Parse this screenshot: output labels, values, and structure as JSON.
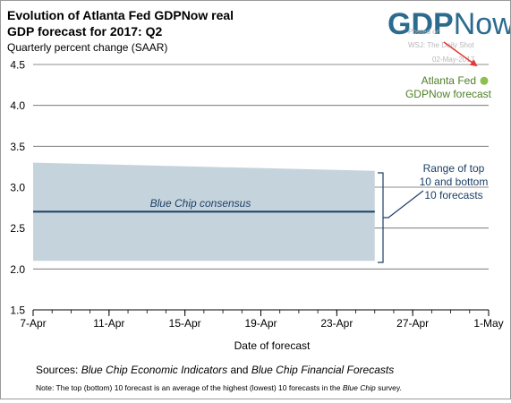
{
  "chart_data": {
    "type": "area",
    "title": "Evolution of Atlanta Fed GDPNow real GDP forecast for 2017: Q2",
    "title_lines": [
      "Evolution of Atlanta Fed GDPNow real",
      "GDP forecast for 2017: Q2"
    ],
    "subtitle": "Quarterly percent change (SAAR)",
    "xlabel": "Date of forecast",
    "ylabel": "",
    "ylim": [
      1.5,
      4.5
    ],
    "yticks": [
      "4.5",
      "4.0",
      "3.5",
      "3.0",
      "2.5",
      "2.0",
      "1.5"
    ],
    "ytick_values": [
      4.5,
      4.0,
      3.5,
      3.0,
      2.5,
      2.0,
      1.5
    ],
    "xlim": [
      "2017-04-07",
      "2017-05-01"
    ],
    "xticks": [
      "7-Apr",
      "11-Apr",
      "15-Apr",
      "19-Apr",
      "23-Apr",
      "27-Apr",
      "1-May"
    ],
    "xtick_dates": [
      "2017-04-07",
      "2017-04-11",
      "2017-04-15",
      "2017-04-19",
      "2017-04-23",
      "2017-04-27",
      "2017-05-01"
    ],
    "grid": true,
    "series": [
      {
        "name": "Range of top 10 and bottom 10 forecasts",
        "type": "area",
        "x": [
          "2017-04-07",
          "2017-04-25"
        ],
        "upper": [
          3.3,
          3.2
        ],
        "lower": [
          2.1,
          2.1
        ]
      },
      {
        "name": "Blue Chip consensus",
        "type": "line",
        "x": [
          "2017-04-07",
          "2017-04-25"
        ],
        "values": [
          2.7,
          2.7
        ]
      },
      {
        "name": "Atlanta Fed GDPNow forecast",
        "type": "scatter",
        "x": [
          "2017-05-01"
        ],
        "values": [
          4.3
        ]
      }
    ],
    "annotations": {
      "consensus_label": "Blue Chip consensus",
      "range_label_lines": [
        "Range of top",
        "10 and bottom",
        "10 forecasts"
      ],
      "gdpnow_label_lines": [
        "Atlanta Fed",
        "GDPNow forecast"
      ]
    },
    "sources": {
      "prefix": "Sources: ",
      "source_1": "Blue Chip Economic Indicators",
      "middle": " and ",
      "source_2": "Blue Chip Financial Forecasts"
    },
    "note": {
      "prefix": "Note: The top (bottom) 10 forecast is an average of the highest (lowest) 10 forecasts in the ",
      "italic": "Blue Chip",
      "suffix": " survey."
    }
  },
  "logo": {
    "gdp": "GDP",
    "now": "Now",
    "stamp_lines": [
      "Posted on",
      "WSJ: The Daily Shot",
      "02-May-2017"
    ]
  },
  "colors": {
    "band": "#c5d4dc",
    "consensus_line": "#1c3f66",
    "annotation": "#1c3f66",
    "dot": "#8cbf4e",
    "dot_label": "#4e7f27",
    "arrow": "#e33a36",
    "logo": "#2b6b8e",
    "grid": "#666666",
    "text": "#000000"
  }
}
